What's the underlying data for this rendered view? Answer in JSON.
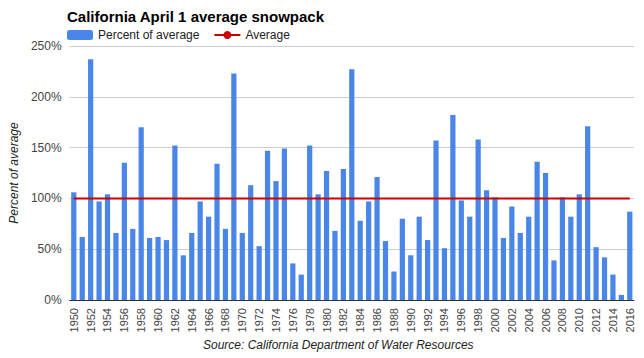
{
  "chart_data": {
    "type": "bar",
    "title": "California April 1 average snowpack",
    "y_label": "Percent of average",
    "source": "Source: California Department of Water Resources",
    "categories": [
      "1950",
      null,
      "1952",
      null,
      "1954",
      null,
      "1956",
      null,
      "1958",
      null,
      "1960",
      null,
      "1962",
      null,
      "1964",
      null,
      "1966",
      null,
      "1968",
      null,
      "1970",
      null,
      "1972",
      null,
      "1974",
      null,
      "1976",
      null,
      "1978",
      null,
      "1980",
      null,
      "1982",
      null,
      "1984",
      null,
      "1986",
      null,
      "1988",
      null,
      "1990",
      null,
      "1992",
      null,
      "1994",
      null,
      "1996",
      null,
      "1998",
      null,
      "2000",
      null,
      "2002",
      null,
      "2004",
      null,
      "2006",
      null,
      "2008",
      null,
      "2010",
      null,
      "2012",
      null,
      "2014",
      null,
      "2016"
    ],
    "series": [
      {
        "name": "Percent of average",
        "type": "bar",
        "color": "#4a86e8",
        "values": [
          106,
          62,
          237,
          97,
          104,
          66,
          135,
          70,
          170,
          61,
          62,
          59,
          152,
          44,
          66,
          97,
          82,
          134,
          70,
          223,
          66,
          113,
          53,
          147,
          117,
          149,
          36,
          25,
          152,
          104,
          127,
          68,
          129,
          227,
          78,
          97,
          121,
          58,
          28,
          80,
          44,
          82,
          59,
          157,
          51,
          182,
          98,
          82,
          158,
          108,
          101,
          61,
          92,
          66,
          82,
          136,
          125,
          39,
          101,
          82,
          104,
          171,
          52,
          42,
          25,
          5,
          87
        ]
      },
      {
        "name": "Average",
        "type": "line",
        "color": "#cc0000",
        "values": [
          100,
          100,
          100,
          100,
          100,
          100,
          100,
          100,
          100,
          100,
          100,
          100,
          100,
          100,
          100,
          100,
          100,
          100,
          100,
          100,
          100,
          100,
          100,
          100,
          100,
          100,
          100,
          100,
          100,
          100,
          100,
          100,
          100,
          100,
          100,
          100,
          100,
          100,
          100,
          100,
          100,
          100,
          100,
          100,
          100,
          100,
          100,
          100,
          100,
          100,
          100,
          100,
          100,
          100,
          100,
          100,
          100,
          100,
          100,
          100,
          100,
          100,
          100,
          100,
          100,
          100,
          100
        ]
      }
    ],
    "ylim": [
      0,
      250
    ],
    "yticks": [
      {
        "value": 0,
        "label": "0%"
      },
      {
        "value": 50,
        "label": "50%"
      },
      {
        "value": 100,
        "label": "100%"
      },
      {
        "value": 150,
        "label": "150%"
      },
      {
        "value": 200,
        "label": "200%"
      },
      {
        "value": 250,
        "label": "250%"
      }
    ],
    "grid": true,
    "legend": "top-left"
  }
}
